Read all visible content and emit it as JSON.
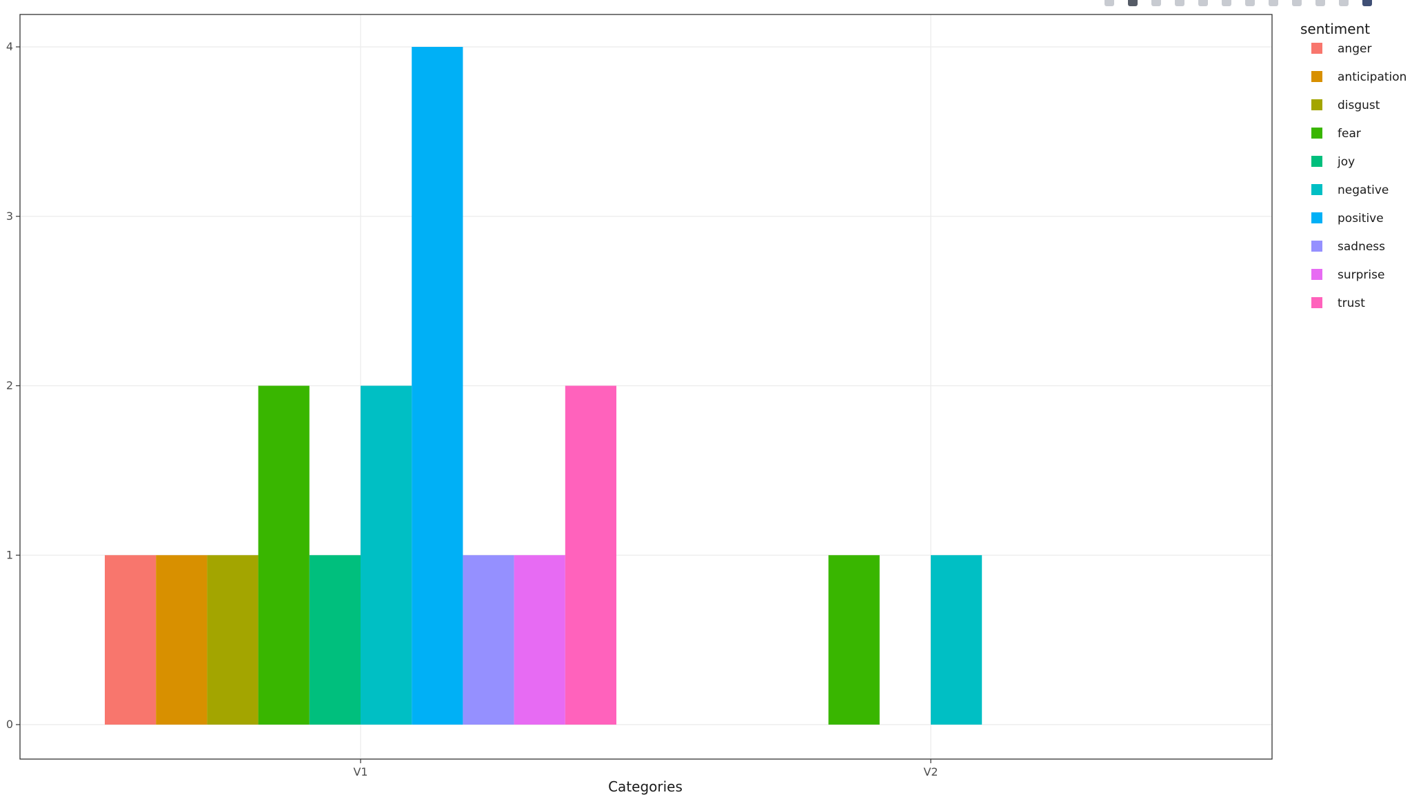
{
  "chart_data": {
    "type": "bar",
    "categories": [
      "V1",
      "V2"
    ],
    "xlabel": "Categories",
    "ylabel": "",
    "ylim": [
      0,
      4
    ],
    "yticks": [
      0,
      1,
      2,
      3,
      4
    ],
    "grid": true,
    "legend": {
      "title": "sentiment",
      "placement": "right"
    },
    "series": [
      {
        "name": "anger",
        "color": "#F8766D",
        "values": [
          1,
          0
        ]
      },
      {
        "name": "anticipation",
        "color": "#D89000",
        "values": [
          1,
          0
        ]
      },
      {
        "name": "disgust",
        "color": "#A3A500",
        "values": [
          1,
          0
        ]
      },
      {
        "name": "fear",
        "color": "#39B600",
        "values": [
          2,
          1
        ]
      },
      {
        "name": "joy",
        "color": "#00BF7D",
        "values": [
          1,
          0
        ]
      },
      {
        "name": "negative",
        "color": "#00BFC4",
        "values": [
          2,
          1
        ]
      },
      {
        "name": "positive",
        "color": "#00B0F6",
        "values": [
          4,
          0
        ]
      },
      {
        "name": "sadness",
        "color": "#9590FF",
        "values": [
          1,
          0
        ]
      },
      {
        "name": "surprise",
        "color": "#E76BF3",
        "values": [
          1,
          0
        ]
      },
      {
        "name": "trust",
        "color": "#FF62BC",
        "values": [
          2,
          0
        ]
      }
    ]
  },
  "modebar": {
    "buttons": [
      "camera-icon",
      "zoom-icon",
      "pan-icon",
      "box-select-icon",
      "lasso-icon",
      "zoom-in-icon",
      "zoom-out-icon",
      "autoscale-icon",
      "reset-axes-icon",
      "spike-lines-icon",
      "hover-closest-icon",
      "plotly-logo-icon"
    ]
  }
}
